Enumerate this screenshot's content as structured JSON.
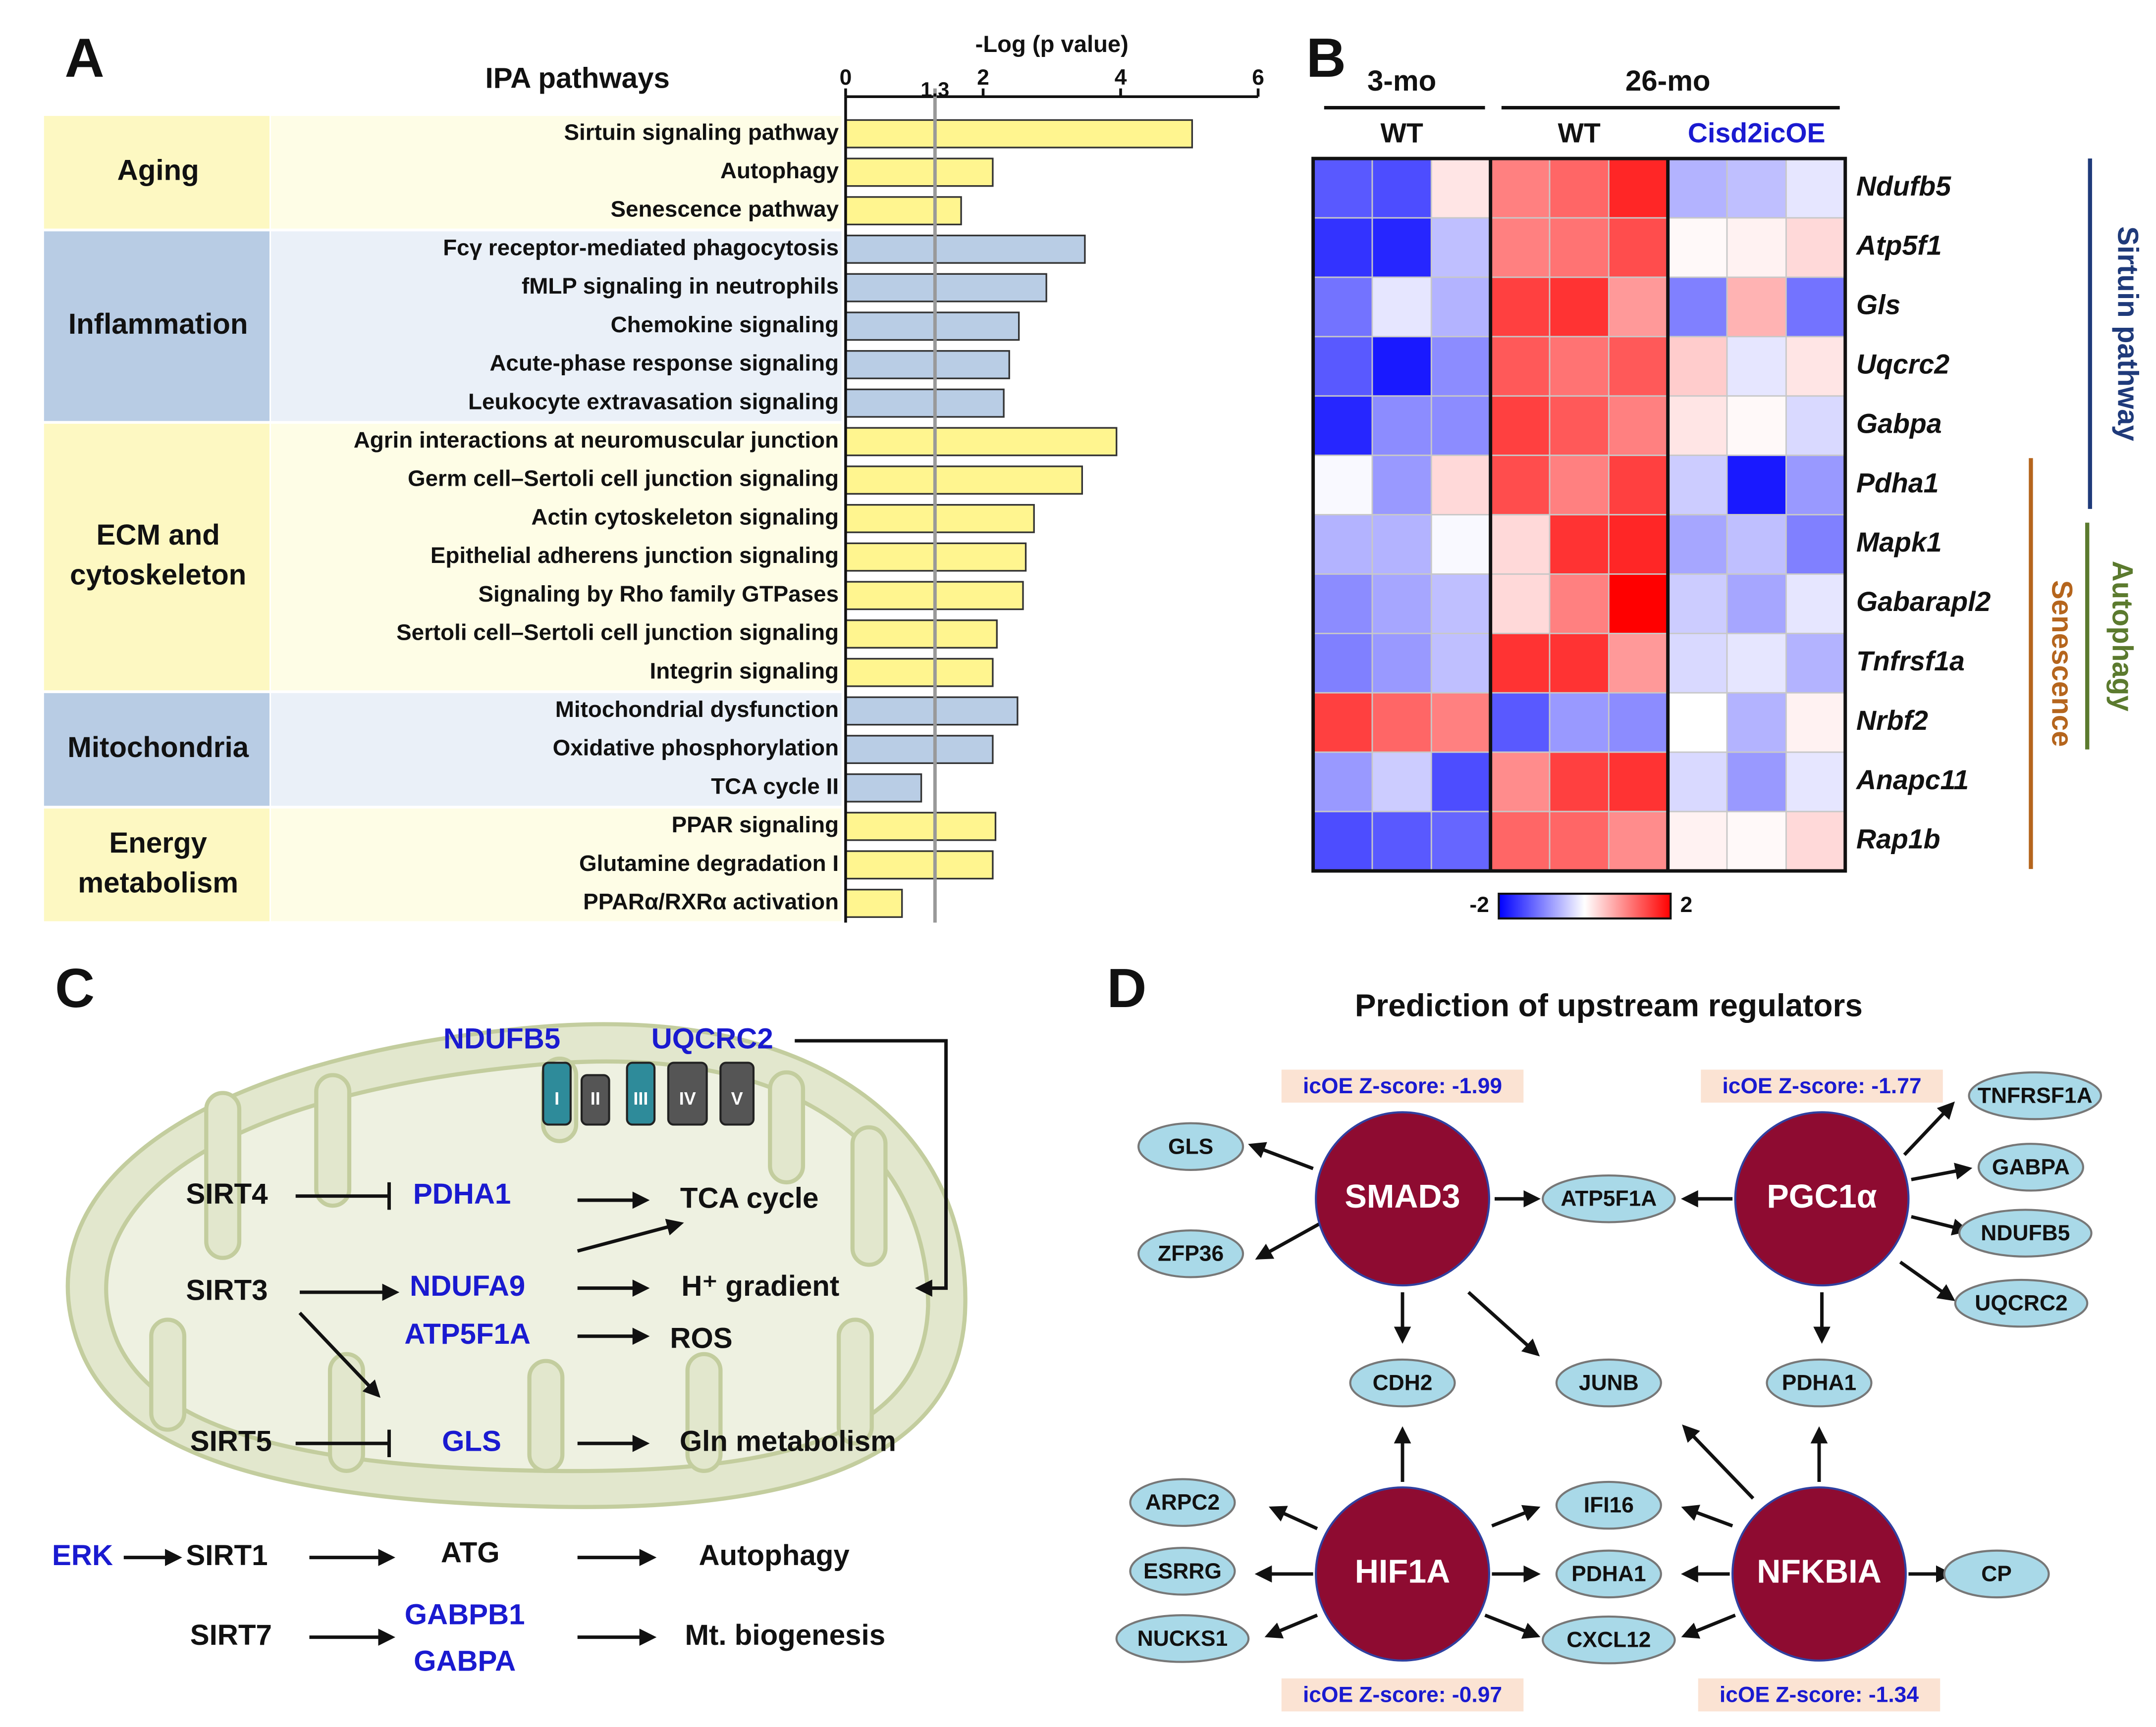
{
  "panels": {
    "a": "A",
    "b": "B",
    "c": "C",
    "d": "D"
  },
  "chart_data": [
    {
      "type": "bar",
      "orientation": "horizontal",
      "title": "IPA pathways",
      "xlabel": "-Log (p value)",
      "xlim": [
        0,
        6
      ],
      "xticks": [
        0,
        2,
        4,
        6
      ],
      "threshold": 1.3,
      "groups": [
        {
          "label": [
            "Aging"
          ],
          "color": "#fff58f",
          "label_fill": "#fdf8c2",
          "row_fill": "#fefde6",
          "categories": [
            "Sirtuin signaling pathway",
            "Autophagy",
            "Senescence pathway"
          ],
          "values": [
            5.04,
            2.14,
            1.68
          ]
        },
        {
          "label": [
            "Inflammation"
          ],
          "color": "#b9cde5",
          "label_fill": "#b8cce4",
          "row_fill": "#eaf0f8",
          "categories": [
            "Fcγ receptor-mediated phagocytosis",
            "fMLP signaling in neutrophils",
            "Chemokine signaling",
            "Acute-phase response signaling",
            "Leukocyte extravasation signaling"
          ],
          "values": [
            3.48,
            2.92,
            2.52,
            2.38,
            2.3
          ]
        },
        {
          "label": [
            "ECM and",
            "cytoskeleton"
          ],
          "color": "#fff58f",
          "label_fill": "#fdf8c2",
          "row_fill": "#fefde6",
          "categories": [
            "Agrin interactions at neuromuscular junction",
            "Germ cell–Sertoli cell junction signaling",
            "Actin cytoskeleton signaling",
            "Epithelial adherens junction signaling",
            "Signaling by Rho family GTPases",
            "Sertoli cell–Sertoli cell junction signaling",
            "Integrin signaling"
          ],
          "values": [
            3.94,
            3.44,
            2.74,
            2.62,
            2.58,
            2.2,
            2.14
          ]
        },
        {
          "label": [
            "Mitochondria"
          ],
          "color": "#b9cde5",
          "label_fill": "#b8cce4",
          "row_fill": "#eaf0f8",
          "categories": [
            "Mitochondrial dysfunction",
            "Oxidative phosphorylation",
            "TCA cycle II"
          ],
          "values": [
            2.5,
            2.14,
            1.1
          ]
        },
        {
          "label": [
            "Energy",
            "metabolism"
          ],
          "color": "#fff58f",
          "label_fill": "#fdf8c2",
          "row_fill": "#fefde6",
          "categories": [
            "PPAR signaling",
            "Glutamine degradation I",
            "PPARα/RXRα activation"
          ],
          "values": [
            2.18,
            2.14,
            0.82
          ]
        }
      ]
    },
    {
      "type": "heatmap",
      "ages": [
        "3-mo",
        "26-mo"
      ],
      "genotypes": [
        "WT",
        "WT",
        "Cisd2icOE"
      ],
      "rows": [
        "Ndufb5",
        "Atp5f1",
        "Gls",
        "Uqcrc2",
        "Gabpa",
        "Pdha1",
        "Mapk1",
        "Gabarapl2",
        "Tnfrsf1a",
        "Nrbf2",
        "Anapc11",
        "Rap1b"
      ],
      "values": [
        [
          -1.3,
          -1.4,
          0.2,
          1.0,
          1.2,
          1.7,
          -0.6,
          -0.5,
          -0.2
        ],
        [
          -1.6,
          -1.7,
          -0.5,
          1.0,
          1.1,
          1.4,
          0.05,
          0.1,
          0.3
        ],
        [
          -1.1,
          -0.2,
          -0.6,
          1.5,
          1.6,
          0.8,
          -1.0,
          0.6,
          -1.1
        ],
        [
          -1.3,
          -1.8,
          -0.9,
          1.3,
          1.1,
          1.3,
          0.4,
          -0.2,
          0.2
        ],
        [
          -1.7,
          -0.9,
          -0.9,
          1.5,
          1.3,
          1.0,
          0.2,
          0.05,
          -0.3
        ],
        [
          -0.05,
          -0.8,
          0.3,
          1.4,
          1.0,
          1.5,
          -0.4,
          -1.8,
          -0.8
        ],
        [
          -0.6,
          -0.6,
          -0.05,
          0.3,
          1.6,
          1.7,
          -0.7,
          -0.5,
          -1.0
        ],
        [
          -0.9,
          -0.7,
          -0.5,
          0.3,
          1.0,
          2.0,
          -0.4,
          -0.7,
          -0.2
        ],
        [
          -1.0,
          -0.8,
          -0.5,
          1.6,
          1.6,
          0.8,
          -0.3,
          -0.2,
          -0.6
        ],
        [
          1.5,
          1.2,
          1.0,
          -1.3,
          -0.8,
          -0.9,
          0,
          -0.6,
          0.1
        ],
        [
          -0.8,
          -0.4,
          -1.4,
          0.9,
          1.5,
          1.6,
          -0.3,
          -0.8,
          -0.2
        ],
        [
          -1.4,
          -1.3,
          -1.2,
          1.2,
          1.2,
          0.9,
          0.1,
          0.05,
          0.3
        ]
      ],
      "zlim": [
        -2,
        2
      ],
      "zticks": [
        -2,
        2
      ],
      "colors": [
        "#0000ff",
        "#ffffff",
        "#ff0000"
      ],
      "pathways": [
        {
          "label": "Sirtuin pathway",
          "color": "#1f3a7a"
        },
        {
          "label": "Autophagy",
          "color": "#5b7a2e"
        },
        {
          "label": "Senescence",
          "color": "#b5651d"
        }
      ]
    }
  ],
  "diagram_c": {
    "complexes": [
      "I",
      "II",
      "III",
      "IV",
      "V"
    ],
    "labels": [
      {
        "text": "NDUFB5",
        "kind": "protein"
      },
      {
        "text": "UQCRC2",
        "kind": "protein"
      },
      {
        "text": "SIRT4",
        "kind": "sirt"
      },
      {
        "text": "PDHA1",
        "kind": "protein"
      },
      {
        "text": "TCA cycle",
        "kind": "process"
      },
      {
        "text": "SIRT3",
        "kind": "sirt"
      },
      {
        "text": "NDUFA9",
        "kind": "protein"
      },
      {
        "text": "ATP5F1A",
        "kind": "protein"
      },
      {
        "text": "H⁺ gradient",
        "kind": "process"
      },
      {
        "text": "ROS",
        "kind": "process"
      },
      {
        "text": "SIRT5",
        "kind": "sirt"
      },
      {
        "text": "GLS",
        "kind": "protein"
      },
      {
        "text": "Gln metabolism",
        "kind": "process"
      },
      {
        "text": "ERK",
        "kind": "protein"
      },
      {
        "text": "SIRT1",
        "kind": "sirt"
      },
      {
        "text": "ATG",
        "kind": "plain"
      },
      {
        "text": "Autophagy",
        "kind": "process"
      },
      {
        "text": "SIRT7",
        "kind": "sirt"
      },
      {
        "text": "GABPB1",
        "kind": "protein"
      },
      {
        "text": "GABPA",
        "kind": "protein"
      },
      {
        "text": "Mt. biogenesis",
        "kind": "process"
      }
    ]
  },
  "diagram_d": {
    "title": "Prediction of upstream regulators",
    "regulators": [
      {
        "label": "SMAD3",
        "score": "icOE Z-score: -1.99"
      },
      {
        "label": "PGC1α",
        "score": "icOE Z-score: -1.77"
      },
      {
        "label": "HIF1A",
        "score": "icOE Z-score: -0.97"
      },
      {
        "label": "NFKBIA",
        "score": "icOE Z-score: -1.34"
      }
    ],
    "targets": [
      "GLS",
      "ZFP36",
      "ATP5F1A",
      "TNFRSF1A",
      "GABPA",
      "NDUFB5",
      "UQCRC2",
      "CDH2",
      "JUNB",
      "PDHA1",
      "ARPC2",
      "ESRRG",
      "NUCKS1",
      "IFI16",
      "PDHA1",
      "CXCL12",
      "CP"
    ]
  }
}
